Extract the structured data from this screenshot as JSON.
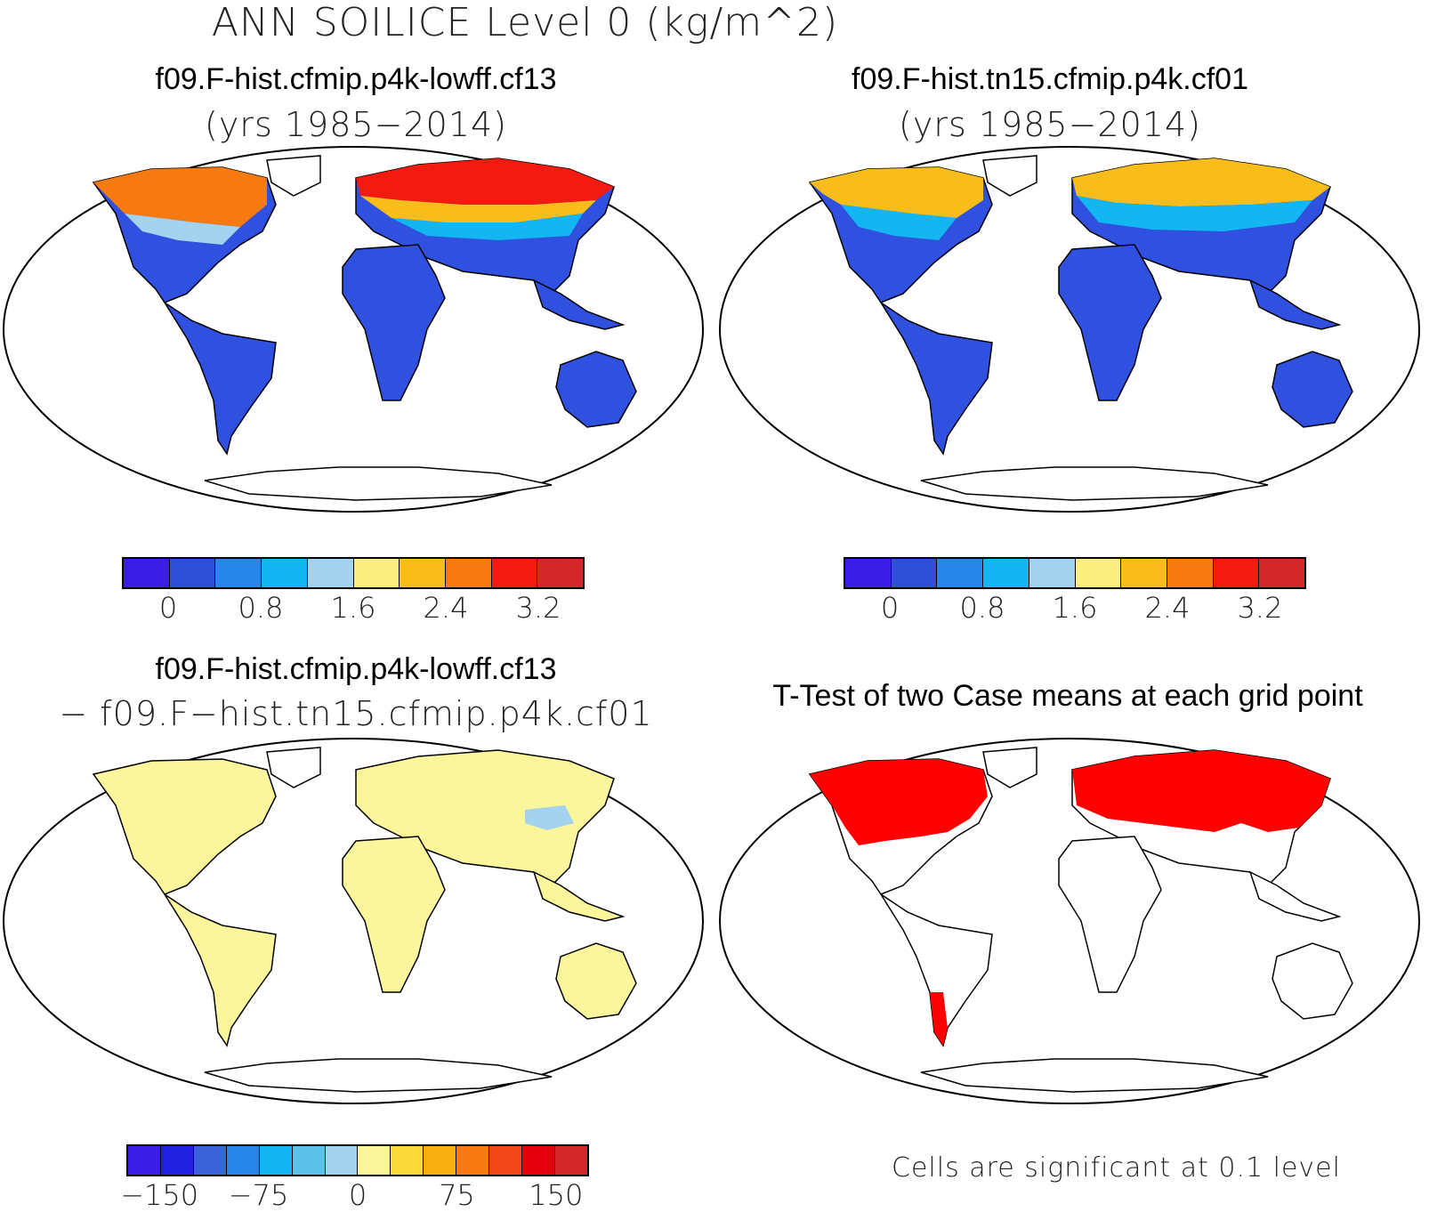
{
  "main_title": "ANN SOILICE Level 0 (kg/m^2)",
  "panels": [
    {
      "title": "f09.F-hist.cfmip.p4k-lowff.cf13",
      "subtitle": "(yrs 1985−2014)"
    },
    {
      "title": "f09.F-hist.tn15.cfmip.p4k.cf01",
      "subtitle": "(yrs 1985−2014)"
    },
    {
      "title": "f09.F-hist.cfmip.p4k-lowff.cf13",
      "subtitle": "− f09.F−hist.tn15.cfmip.p4k.cf01"
    },
    {
      "title": "T-Test of two Case means at each grid point",
      "subtitle": ""
    }
  ],
  "colorbars": {
    "case": {
      "colors": [
        "#3a1ee8",
        "#2f4fd8",
        "#2787e8",
        "#13b6f0",
        "#a3d3ee",
        "#fbee80",
        "#f8bd1a",
        "#f77a10",
        "#f31a10",
        "#d2282a"
      ],
      "labels": [
        "0",
        "0.8",
        "1.6",
        "2.4",
        "3.2"
      ]
    },
    "diff": {
      "colors": [
        "#3a1ee8",
        "#2020e0",
        "#3b63d8",
        "#2787e8",
        "#13b6f0",
        "#5cc0e8",
        "#a3d3ee",
        "#fbf59b",
        "#fbd83a",
        "#f8ad10",
        "#f77a10",
        "#f3451a",
        "#e4000c",
        "#d2282a"
      ],
      "labels": [
        "−150",
        "−75",
        "0",
        "75",
        "150"
      ]
    }
  },
  "note": "Cells are significant at 0.1 level",
  "colors": {
    "land_low": "#3050e0",
    "land_diff": "#fbf59b",
    "significant": "#ff0000",
    "coast": "#000000"
  }
}
